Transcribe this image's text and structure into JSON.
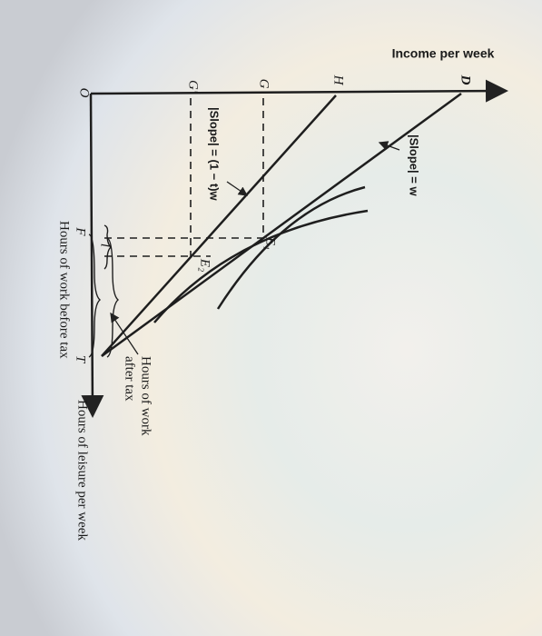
{
  "axes": {
    "income": "Income per week",
    "leisure": "Hours of leisure per week"
  },
  "points": {
    "D": "D",
    "H": "H",
    "G": "G",
    "G_prime": "G'",
    "O": "O",
    "F": "F",
    "T": "T",
    "E1": "E₁",
    "E2": "E₂",
    "l": "l"
  },
  "annotations": {
    "slope_w": "|Slope| = w",
    "slope_tw": "|Slope| = (1 − t)w",
    "work_after": [
      "Hours of work",
      "after tax"
    ],
    "work_before": "Hours of work before tax"
  }
}
